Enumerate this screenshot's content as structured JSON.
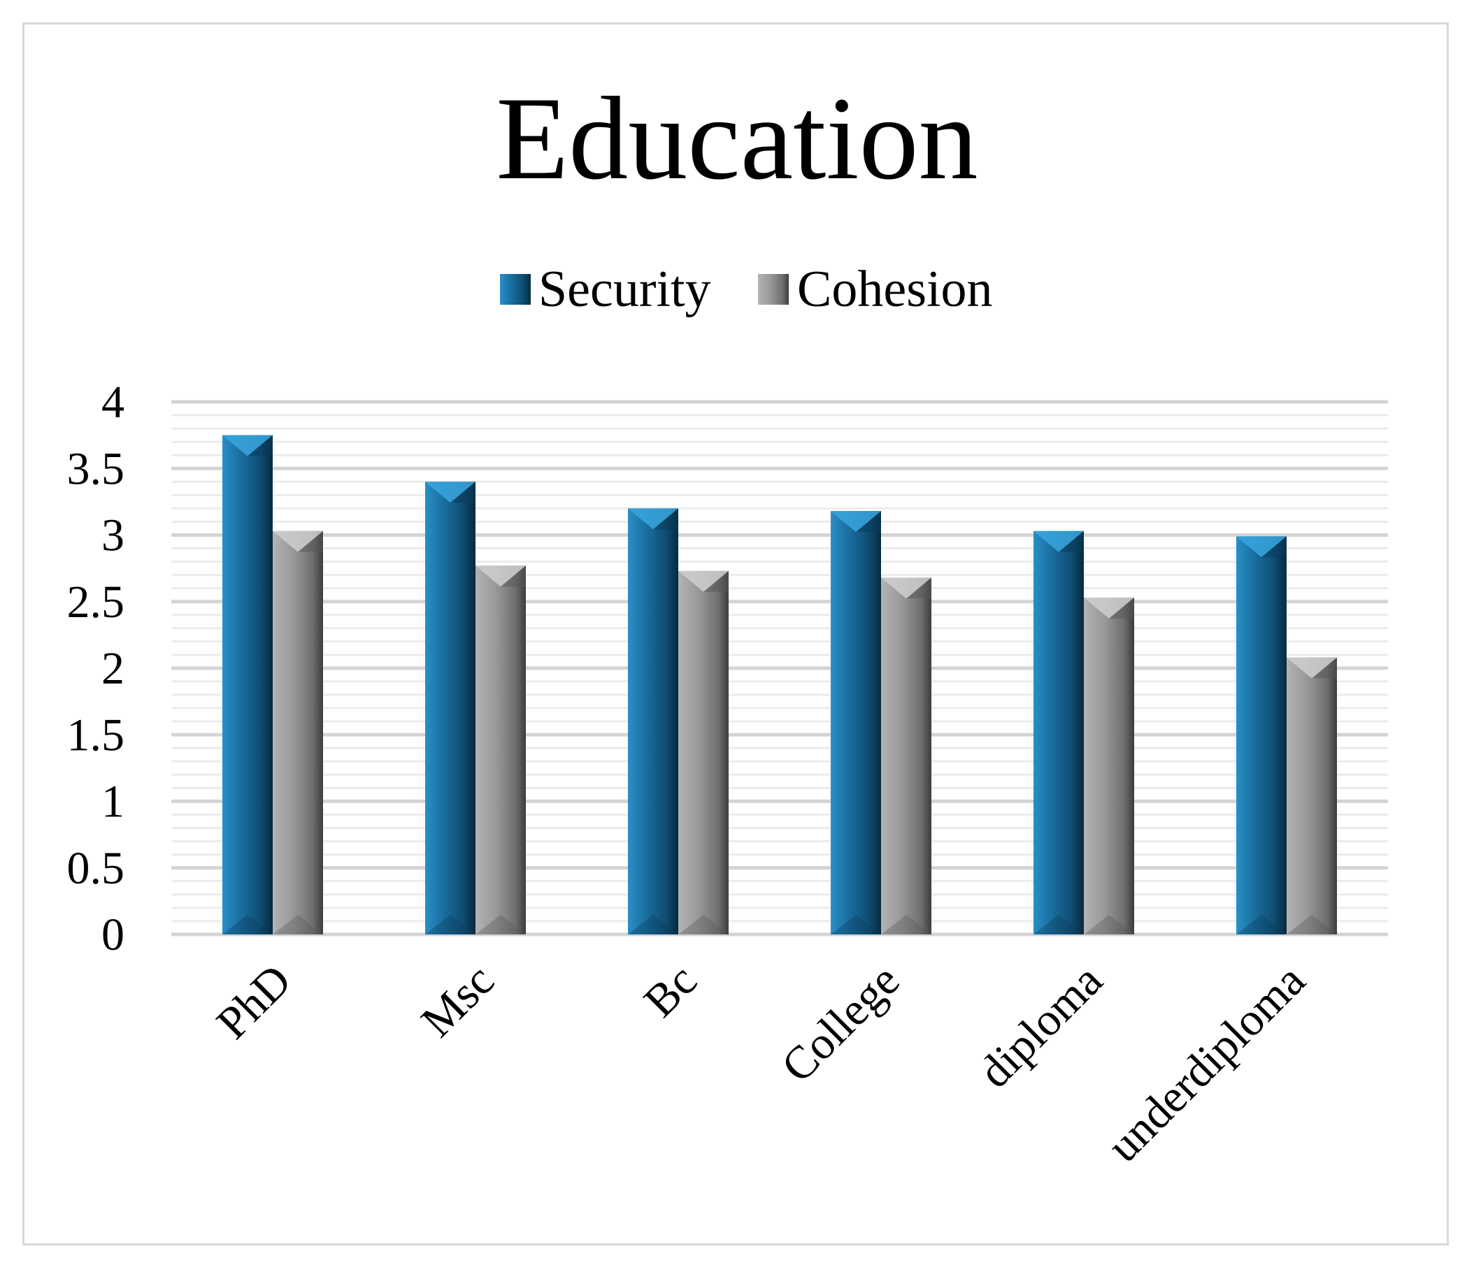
{
  "chart_data": {
    "type": "bar",
    "title": "Education",
    "xlabel": "",
    "ylabel": "",
    "categories": [
      "PhD",
      "Msc",
      "Bc",
      "College",
      "diploma",
      "underdiploma"
    ],
    "series": [
      {
        "name": "Security",
        "values": [
          3.75,
          3.4,
          3.2,
          3.18,
          3.03,
          2.99
        ],
        "color": "#1b6f9e"
      },
      {
        "name": "Cohesion",
        "values": [
          3.03,
          2.77,
          2.73,
          2.68,
          2.53,
          2.08
        ],
        "color": "#8a8a8a"
      }
    ],
    "ylim": [
      0,
      4
    ],
    "yticks": [
      "0",
      "0.5",
      "1",
      "1.5",
      "2",
      "2.5",
      "3",
      "3.5",
      "4"
    ],
    "grid": true,
    "legend": "top-center"
  }
}
